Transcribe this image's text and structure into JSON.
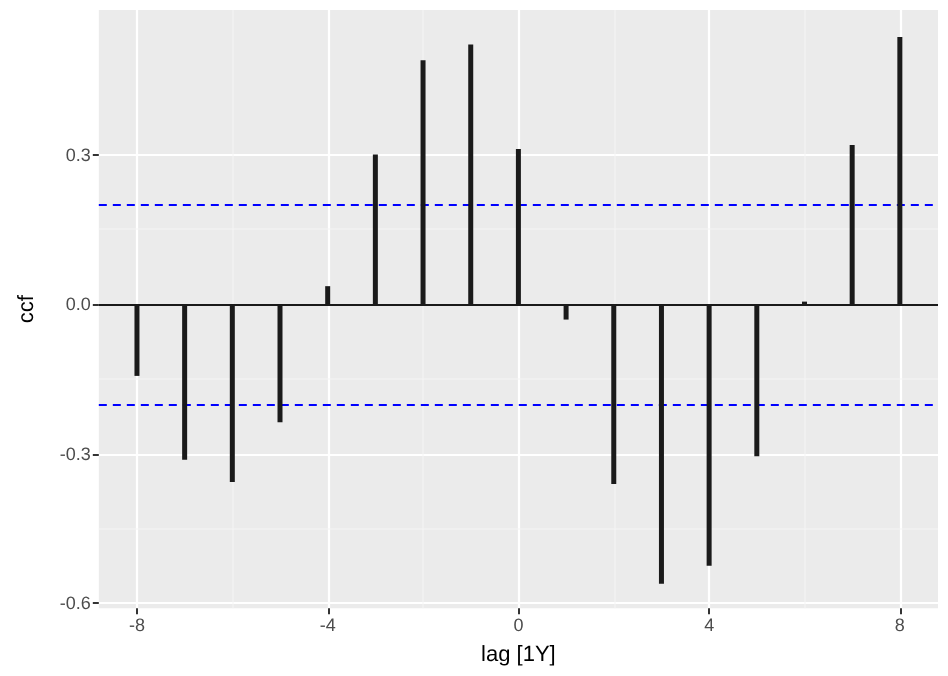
{
  "chart_data": {
    "type": "bar",
    "xlabel": "lag [1Y]",
    "ylabel": "ccf",
    "x": [
      -8,
      -7,
      -6,
      -5,
      -4,
      -3,
      -2,
      -1,
      0,
      1,
      2,
      3,
      4,
      5,
      6,
      7,
      8
    ],
    "values": [
      -0.144,
      -0.312,
      -0.357,
      -0.237,
      0.036,
      0.3,
      0.489,
      0.521,
      0.311,
      -0.031,
      -0.361,
      -0.561,
      -0.525,
      -0.305,
      0.005,
      0.319,
      0.536
    ],
    "color": "#1a1a1a",
    "xlim": [
      -8.8,
      8.8
    ],
    "xticks": [
      -8,
      -4,
      0,
      4,
      8
    ],
    "ylim": [
      -0.61,
      0.59
    ],
    "yticks": [
      0.3,
      {
        "value": 0,
        "label": "0.0"
      },
      -0.3,
      -0.6
    ],
    "ref_lines": [
      {
        "axis": "y",
        "value": 0,
        "color": "#1a1a1a",
        "line_style": "solid"
      },
      {
        "axis": "y",
        "value": 0.205,
        "color": "#0000ff",
        "line_style": "dashed"
      },
      {
        "axis": "y",
        "value": -0.205,
        "color": "#0000ff",
        "line_style": "dashed"
      }
    ],
    "grid": true
  }
}
